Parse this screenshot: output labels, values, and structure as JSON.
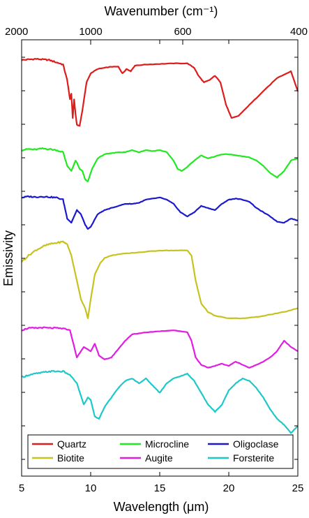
{
  "chart_data": {
    "type": "line",
    "xlabel": "Wavelength (μm)",
    "ylabel": "Emissivity",
    "top_axis_label": "Wavenumber (cm⁻¹)",
    "x_range": [
      5,
      25
    ],
    "x_ticks": [
      5,
      10,
      15,
      20,
      25
    ],
    "top_ticks_wavenumber": [
      2000,
      1000,
      600,
      400
    ],
    "y_tick_labels_shown": false,
    "grid": false,
    "legend_position": "bottom-inside",
    "series": [
      {
        "name": "Quartz",
        "color": "#dd1c1c",
        "x": [
          5,
          5.5,
          6,
          6.5,
          7,
          7.5,
          8,
          8.3,
          8.5,
          8.6,
          8.7,
          8.8,
          8.9,
          9.0,
          9.2,
          9.4,
          9.7,
          10,
          10.5,
          11,
          11.5,
          12,
          12.3,
          12.6,
          12.9,
          13.2,
          14,
          15,
          16,
          17,
          17.5,
          17.8,
          18.2,
          18.6,
          19,
          19.4,
          19.8,
          20.2,
          20.7,
          21.5,
          22.5,
          23.5,
          24.5,
          25
        ],
        "y": [
          0.9,
          0.905,
          0.91,
          0.905,
          0.9,
          0.88,
          0.86,
          0.72,
          0.55,
          0.6,
          0.38,
          0.55,
          0.42,
          0.32,
          0.31,
          0.45,
          0.7,
          0.78,
          0.82,
          0.83,
          0.84,
          0.84,
          0.78,
          0.82,
          0.8,
          0.85,
          0.86,
          0.865,
          0.87,
          0.87,
          0.83,
          0.76,
          0.7,
          0.72,
          0.76,
          0.7,
          0.5,
          0.38,
          0.4,
          0.5,
          0.62,
          0.74,
          0.8,
          0.62
        ]
      },
      {
        "name": "Microcline",
        "color": "#22e822",
        "x": [
          5,
          5.5,
          6,
          6.5,
          7,
          7.5,
          8,
          8.3,
          8.6,
          8.9,
          9.0,
          9.2,
          9.4,
          9.6,
          9.8,
          10.1,
          10.5,
          11,
          11.5,
          12,
          12.5,
          13,
          13.5,
          14,
          14.5,
          15,
          15.5,
          16,
          16.3,
          16.6,
          17,
          17.5,
          18,
          18.5,
          19,
          19.5,
          20,
          20.5,
          21,
          21.5,
          22,
          22.5,
          23,
          23.5,
          24,
          24.5,
          25
        ],
        "y": [
          0.9,
          0.91,
          0.905,
          0.915,
          0.91,
          0.9,
          0.88,
          0.75,
          0.7,
          0.8,
          0.78,
          0.72,
          0.7,
          0.62,
          0.6,
          0.72,
          0.82,
          0.86,
          0.87,
          0.88,
          0.88,
          0.9,
          0.88,
          0.9,
          0.89,
          0.9,
          0.88,
          0.8,
          0.72,
          0.7,
          0.74,
          0.8,
          0.85,
          0.82,
          0.84,
          0.86,
          0.86,
          0.85,
          0.84,
          0.83,
          0.8,
          0.75,
          0.68,
          0.64,
          0.7,
          0.8,
          0.82
        ]
      },
      {
        "name": "Oligoclase",
        "color": "#1a1acc",
        "x": [
          5,
          5.5,
          6,
          6.5,
          7,
          7.5,
          8,
          8.3,
          8.6,
          9.0,
          9.3,
          9.6,
          9.8,
          10,
          10.5,
          11,
          11.5,
          12,
          12.5,
          13,
          13.5,
          14,
          14.5,
          15,
          15.5,
          16,
          16.5,
          17,
          17.5,
          18,
          18.5,
          19,
          19.5,
          20,
          20.5,
          21,
          21.5,
          22,
          22.5,
          23,
          23.5,
          24,
          24.5,
          25
        ],
        "y": [
          0.88,
          0.89,
          0.885,
          0.89,
          0.885,
          0.88,
          0.86,
          0.68,
          0.64,
          0.76,
          0.72,
          0.62,
          0.58,
          0.6,
          0.72,
          0.76,
          0.78,
          0.8,
          0.82,
          0.82,
          0.83,
          0.86,
          0.87,
          0.88,
          0.86,
          0.82,
          0.74,
          0.7,
          0.74,
          0.8,
          0.78,
          0.76,
          0.82,
          0.86,
          0.87,
          0.86,
          0.84,
          0.78,
          0.74,
          0.7,
          0.65,
          0.64,
          0.68,
          0.66
        ]
      },
      {
        "name": "Biotite",
        "color": "#c8c21e",
        "x": [
          5,
          5.5,
          6,
          6.5,
          7,
          7.5,
          8,
          8.3,
          8.6,
          9.0,
          9.3,
          9.6,
          9.8,
          10,
          10.3,
          10.7,
          11,
          11.5,
          12,
          13,
          14,
          15,
          16,
          17,
          17.3,
          17.6,
          18,
          18.5,
          19,
          20,
          21,
          22,
          23,
          24,
          25
        ],
        "y": [
          0.75,
          0.8,
          0.84,
          0.87,
          0.89,
          0.9,
          0.91,
          0.89,
          0.8,
          0.6,
          0.45,
          0.38,
          0.3,
          0.45,
          0.65,
          0.74,
          0.78,
          0.8,
          0.81,
          0.82,
          0.83,
          0.84,
          0.84,
          0.84,
          0.8,
          0.6,
          0.42,
          0.35,
          0.32,
          0.3,
          0.3,
          0.31,
          0.33,
          0.35,
          0.38
        ]
      },
      {
        "name": "Augite",
        "color": "#e11de1",
        "x": [
          5,
          5.5,
          6,
          6.5,
          7,
          7.5,
          8,
          8.5,
          9.0,
          9.5,
          10,
          10.3,
          10.6,
          11,
          11.5,
          12,
          12.5,
          13,
          14,
          15,
          16,
          17,
          17.3,
          17.6,
          18,
          18.5,
          19,
          19.5,
          20,
          20.5,
          21,
          21.5,
          22,
          22.5,
          23,
          23.5,
          24,
          24.5,
          25
        ],
        "y": [
          0.88,
          0.9,
          0.9,
          0.905,
          0.9,
          0.9,
          0.895,
          0.88,
          0.62,
          0.72,
          0.68,
          0.75,
          0.64,
          0.6,
          0.62,
          0.7,
          0.78,
          0.84,
          0.86,
          0.87,
          0.88,
          0.86,
          0.78,
          0.62,
          0.55,
          0.52,
          0.54,
          0.56,
          0.54,
          0.58,
          0.55,
          0.52,
          0.55,
          0.58,
          0.62,
          0.68,
          0.78,
          0.72,
          0.68
        ]
      },
      {
        "name": "Forsterite",
        "color": "#1ec8c8",
        "x": [
          5,
          5.5,
          6,
          6.5,
          7,
          7.5,
          8,
          8.5,
          9.0,
          9.5,
          9.8,
          10,
          10.3,
          10.6,
          11,
          11.5,
          12,
          12.5,
          13,
          13.5,
          14,
          14.5,
          15,
          15.5,
          16,
          16.5,
          17,
          17.5,
          18,
          18.5,
          19,
          19.5,
          20,
          20.5,
          21,
          21.5,
          22,
          22.5,
          23,
          23.5,
          24,
          24.5,
          25
        ],
        "y": [
          0.85,
          0.87,
          0.88,
          0.89,
          0.9,
          0.9,
          0.9,
          0.87,
          0.8,
          0.62,
          0.68,
          0.66,
          0.52,
          0.5,
          0.6,
          0.68,
          0.76,
          0.82,
          0.84,
          0.8,
          0.84,
          0.78,
          0.72,
          0.8,
          0.84,
          0.86,
          0.88,
          0.82,
          0.72,
          0.62,
          0.56,
          0.62,
          0.74,
          0.8,
          0.84,
          0.82,
          0.76,
          0.68,
          0.58,
          0.5,
          0.45,
          0.38,
          0.44
        ]
      }
    ]
  }
}
